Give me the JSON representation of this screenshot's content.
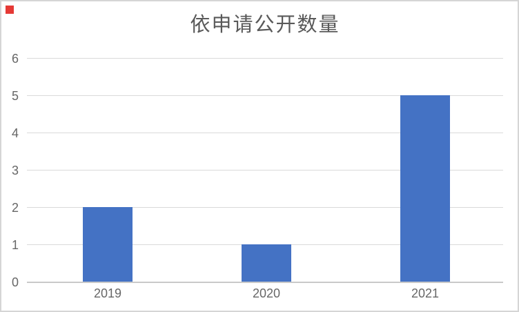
{
  "chart_data": {
    "type": "bar",
    "title": "依申请公开数量",
    "categories": [
      "2019",
      "2020",
      "2021"
    ],
    "values": [
      2,
      1,
      5
    ],
    "series_color": "#4472C4",
    "xlabel": "",
    "ylabel": "",
    "ylim": [
      0,
      6
    ],
    "y_ticks": [
      0,
      1,
      2,
      3,
      4,
      5,
      6
    ],
    "grid": "horizontal-only",
    "legend": "none"
  },
  "ui": {
    "background_color": "#ffffff",
    "frame_border_color": "#d5d5d5",
    "gridline_color": "#d9d9d9",
    "axis_line_color": "#c9c9c9",
    "title_color": "#595959",
    "tick_label_color": "#666666",
    "click_marker_color": "#e53935"
  }
}
